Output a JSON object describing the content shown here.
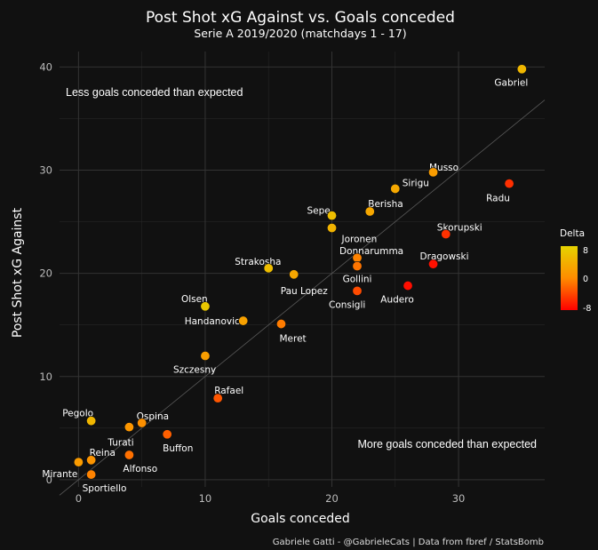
{
  "chart_data": {
    "type": "scatter",
    "title": "Post Shot xG Against vs. Goals conceded",
    "subtitle": "Serie A 2019/2020 (matchdays 1 - 17)",
    "xlabel": "Goals conceded",
    "ylabel": "Post Shot xG Against",
    "xlim": [
      -1.5,
      36.8
    ],
    "ylim": [
      -0.7,
      41.5
    ],
    "xticks": [
      0,
      10,
      20,
      30
    ],
    "yticks": [
      0,
      10,
      20,
      30,
      40
    ],
    "grid": true,
    "reference_line": {
      "slope": 1,
      "intercept": 0
    },
    "annotations": {
      "upper_left": "Less goals conceded than expected",
      "lower_right": "More goals conceded than expected"
    },
    "caption": "Gabriele Gatti - @GabrieleCats | Data from fbref / StatsBomb",
    "legend": {
      "title": "Delta",
      "position": "right",
      "max_label": "8",
      "mid_label": "0",
      "min_label": "-8",
      "colors": [
        "#ff0000",
        "#ff8c00",
        "#e6d300"
      ]
    },
    "points": [
      {
        "name": "Gabriel",
        "x": 35,
        "y": 39.8,
        "delta": 4.8
      },
      {
        "name": "Musso",
        "x": 28,
        "y": 29.8,
        "delta": 1.8
      },
      {
        "name": "Sirigu",
        "x": 25,
        "y": 28.2,
        "delta": 3.2
      },
      {
        "name": "Radu",
        "x": 34,
        "y": 28.7,
        "delta": -5.3
      },
      {
        "name": "Berisha",
        "x": 23,
        "y": 26.0,
        "delta": 3.0
      },
      {
        "name": "Sepe",
        "x": 20,
        "y": 25.6,
        "delta": 5.6
      },
      {
        "name": "Joronen",
        "x": 20,
        "y": 24.4,
        "delta": 4.4
      },
      {
        "name": "Skorupski",
        "x": 29,
        "y": 23.8,
        "delta": -5.2
      },
      {
        "name": "Donnarumma",
        "x": 22,
        "y": 21.5,
        "delta": -0.5
      },
      {
        "name": "Gollini",
        "x": 22,
        "y": 20.7,
        "delta": -1.3
      },
      {
        "name": "Dragowski",
        "x": 28,
        "y": 20.9,
        "delta": -7.1
      },
      {
        "name": "Strakosha",
        "x": 15,
        "y": 20.5,
        "delta": 5.5
      },
      {
        "name": "Pau Lopez",
        "x": 17,
        "y": 19.9,
        "delta": 2.9
      },
      {
        "name": "Consigli",
        "x": 22,
        "y": 18.3,
        "delta": -3.7
      },
      {
        "name": "Audero",
        "x": 26,
        "y": 18.8,
        "delta": -7.2
      },
      {
        "name": "Olsen",
        "x": 10,
        "y": 16.8,
        "delta": 6.8
      },
      {
        "name": "Handanovic",
        "x": 13,
        "y": 15.4,
        "delta": 2.4
      },
      {
        "name": "Meret",
        "x": 16,
        "y": 15.1,
        "delta": -0.9
      },
      {
        "name": "Szczesny",
        "x": 10,
        "y": 12.0,
        "delta": 2.0
      },
      {
        "name": "Rafael",
        "x": 11,
        "y": 7.9,
        "delta": -3.1
      },
      {
        "name": "Pegolo",
        "x": 1,
        "y": 5.7,
        "delta": 4.7
      },
      {
        "name": "Ospina",
        "x": 5,
        "y": 5.5,
        "delta": 0.5
      },
      {
        "name": "Turati",
        "x": 4,
        "y": 5.1,
        "delta": 1.1
      },
      {
        "name": "Buffon",
        "x": 7,
        "y": 4.4,
        "delta": -2.6
      },
      {
        "name": "Reina",
        "x": 1,
        "y": 1.9,
        "delta": 0.9
      },
      {
        "name": "Alfonso",
        "x": 4,
        "y": 2.4,
        "delta": -1.6
      },
      {
        "name": "Mirante",
        "x": 0,
        "y": 1.7,
        "delta": 1.7
      },
      {
        "name": "Sportiello",
        "x": 1,
        "y": 0.5,
        "delta": -0.5
      }
    ]
  }
}
